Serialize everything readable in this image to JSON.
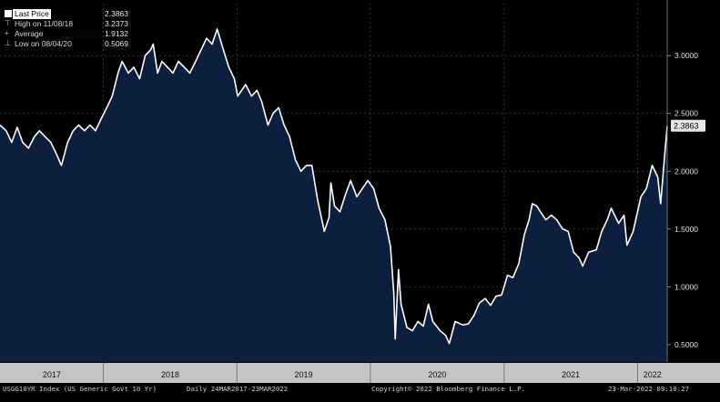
{
  "legend": {
    "last_price": {
      "label": "Last Price",
      "value": "2.3863"
    },
    "high": {
      "label": "High on 11/08/18",
      "value": "3.2373"
    },
    "average": {
      "label": "Average",
      "value": "1.9132"
    },
    "low": {
      "label": "Low on 08/04/20",
      "value": "0.5069"
    }
  },
  "last_value_tag": "2.3863",
  "footer": {
    "security": "USGG10YR Index (US Generic Govt 10 Yr)",
    "range": "Daily 24MAR2017-23MAR2022",
    "copyright": "Copyright© 2022 Bloomberg Finance L.P.",
    "timestamp": "23-Mar-2022 09:10:27"
  },
  "colors": {
    "background": "#000000",
    "area_fill": "#0c1f3f",
    "line": "#ffffff",
    "grid": "#4a5566"
  },
  "chart_data": {
    "type": "area",
    "title": "",
    "xlabel": "",
    "ylabel": "",
    "ylim": [
      0.35,
      3.45
    ],
    "xlim": [
      "2017-03-24",
      "2022-03-23"
    ],
    "y_ticks": [
      "0.5000",
      "1.0000",
      "1.5000",
      "2.0000",
      "2.5000",
      "3.0000"
    ],
    "x_tick_labels": [
      "2017",
      "2018",
      "2019",
      "2020",
      "2021",
      "2022"
    ],
    "grid": true,
    "legend_position": "top-left",
    "series": [
      {
        "x": [
          "2017-03-24",
          "2017-04-10",
          "2017-04-25",
          "2017-05-10",
          "2017-05-25",
          "2017-06-10",
          "2017-06-26",
          "2017-07-10",
          "2017-07-25",
          "2017-08-10",
          "2017-08-25",
          "2017-09-08",
          "2017-09-25",
          "2017-10-10",
          "2017-10-25",
          "2017-11-10",
          "2017-11-25",
          "2017-12-10",
          "2017-12-25",
          "2018-01-10",
          "2018-01-25",
          "2018-02-10",
          "2018-02-21",
          "2018-03-10",
          "2018-03-25",
          "2018-04-10",
          "2018-04-25",
          "2018-05-10",
          "2018-05-17",
          "2018-05-29",
          "2018-06-10",
          "2018-06-25",
          "2018-07-10",
          "2018-07-25",
          "2018-08-10",
          "2018-08-25",
          "2018-09-10",
          "2018-09-25",
          "2018-10-10",
          "2018-10-25",
          "2018-11-08",
          "2018-11-25",
          "2018-12-10",
          "2018-12-25",
          "2019-01-03",
          "2019-01-25",
          "2019-02-10",
          "2019-02-25",
          "2019-03-10",
          "2019-03-27",
          "2019-04-10",
          "2019-04-25",
          "2019-05-10",
          "2019-05-25",
          "2019-06-10",
          "2019-06-25",
          "2019-07-10",
          "2019-07-25",
          "2019-08-10",
          "2019-08-28",
          "2019-09-10",
          "2019-09-15",
          "2019-09-25",
          "2019-10-10",
          "2019-10-25",
          "2019-11-08",
          "2019-11-25",
          "2019-12-10",
          "2019-12-25",
          "2020-01-10",
          "2020-01-25",
          "2020-02-10",
          "2020-02-25",
          "2020-03-05",
          "2020-03-09",
          "2020-03-15",
          "2020-03-18",
          "2020-03-25",
          "2020-04-10",
          "2020-04-25",
          "2020-05-10",
          "2020-05-25",
          "2020-06-08",
          "2020-06-20",
          "2020-07-10",
          "2020-07-25",
          "2020-08-04",
          "2020-08-20",
          "2020-09-10",
          "2020-09-25",
          "2020-10-10",
          "2020-10-25",
          "2020-11-10",
          "2020-11-25",
          "2020-12-10",
          "2020-12-25",
          "2021-01-10",
          "2021-01-25",
          "2021-02-10",
          "2021-02-25",
          "2021-03-10",
          "2021-03-19",
          "2021-03-31",
          "2021-04-10",
          "2021-04-25",
          "2021-05-10",
          "2021-05-25",
          "2021-06-10",
          "2021-06-25",
          "2021-07-10",
          "2021-07-25",
          "2021-08-04",
          "2021-08-20",
          "2021-09-10",
          "2021-09-25",
          "2021-10-10",
          "2021-10-21",
          "2021-11-10",
          "2021-11-25",
          "2021-12-03",
          "2021-12-20",
          "2022-01-10",
          "2022-01-25",
          "2022-02-10",
          "2022-02-25",
          "2022-03-05",
          "2022-03-15",
          "2022-03-23"
        ],
        "values": [
          2.4,
          2.35,
          2.25,
          2.38,
          2.25,
          2.2,
          2.3,
          2.35,
          2.3,
          2.25,
          2.15,
          2.05,
          2.25,
          2.35,
          2.4,
          2.35,
          2.4,
          2.35,
          2.45,
          2.55,
          2.65,
          2.85,
          2.95,
          2.85,
          2.9,
          2.8,
          3.0,
          3.05,
          3.1,
          2.85,
          2.95,
          2.9,
          2.85,
          2.95,
          2.9,
          2.85,
          2.95,
          3.05,
          3.15,
          3.1,
          3.23,
          3.05,
          2.9,
          2.8,
          2.65,
          2.75,
          2.65,
          2.7,
          2.6,
          2.4,
          2.5,
          2.55,
          2.4,
          2.3,
          2.1,
          2.0,
          2.05,
          2.05,
          1.75,
          1.48,
          1.6,
          1.9,
          1.7,
          1.65,
          1.8,
          1.92,
          1.78,
          1.85,
          1.92,
          1.85,
          1.68,
          1.58,
          1.35,
          0.95,
          0.55,
          0.95,
          1.15,
          0.85,
          0.65,
          0.62,
          0.7,
          0.66,
          0.85,
          0.7,
          0.62,
          0.58,
          0.51,
          0.7,
          0.67,
          0.68,
          0.75,
          0.86,
          0.9,
          0.84,
          0.92,
          0.93,
          1.1,
          1.08,
          1.2,
          1.45,
          1.58,
          1.72,
          1.7,
          1.65,
          1.58,
          1.62,
          1.58,
          1.5,
          1.48,
          1.3,
          1.25,
          1.18,
          1.3,
          1.32,
          1.48,
          1.58,
          1.68,
          1.55,
          1.62,
          1.36,
          1.48,
          1.78,
          1.85,
          2.05,
          1.95,
          1.72,
          2.1,
          2.39
        ]
      }
    ]
  }
}
